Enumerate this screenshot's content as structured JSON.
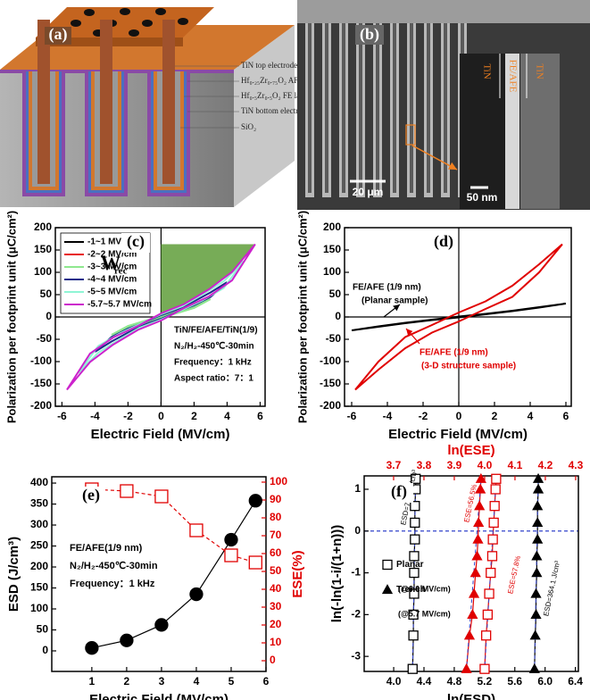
{
  "figure_a": {
    "label": "(a)",
    "layers": [
      "TiN top electrode",
      "Hf₀.₂₅Zr₀.₇₅O₂ AFE layer",
      "Hf₀.₅Zr₀.₅O₂ FE layer",
      "TiN bottom electrode",
      "SiO₂"
    ]
  },
  "figure_b": {
    "label": "(b)",
    "scale_bar": "20 μm",
    "inset_scale_bar": "50 nm",
    "inset_labels": [
      "TiN",
      "FE/AFE",
      "TiN"
    ]
  },
  "chart_data": [
    {
      "type": "line",
      "panel_label": "(c)",
      "xlabel": "Electric Field (MV/cm)",
      "ylabel": "Polarization per footprint unit (μC/cm²)",
      "xlim": [
        -6.4,
        6.3
      ],
      "xticks": [
        -6,
        -4,
        -2,
        0,
        2,
        4,
        6
      ],
      "ylim": [
        -200,
        200
      ],
      "yticks": [
        -200,
        -150,
        -100,
        -50,
        0,
        50,
        100,
        150,
        200
      ],
      "zero_lines": [
        "x",
        "y"
      ],
      "legend": "upper left",
      "area_color": "#5f9e3a",
      "series": [
        {
          "name": "-1~1 MV/cm",
          "color": "#000000",
          "x": [
            1,
            0,
            -1,
            0,
            1
          ],
          "values": [
            12,
            0.5,
            -12,
            -0.5,
            12
          ]
        },
        {
          "name": "-2~2 MV/cm",
          "color": "#e8191b",
          "x": [
            2,
            1,
            0,
            -1,
            -2,
            -1,
            0,
            1,
            2
          ],
          "values": [
            25,
            12,
            1,
            -11,
            -25,
            -12,
            -1,
            11,
            25
          ]
        },
        {
          "name": "-3~3 MV/cm",
          "color": "#8fe88f",
          "x": [
            3,
            2,
            1,
            0,
            -1,
            -2,
            -3,
            -2,
            -1,
            0,
            1,
            2,
            3
          ],
          "values": [
            40,
            24,
            12,
            2,
            -9,
            -20,
            -40,
            -24,
            -12,
            -2,
            9,
            20,
            40
          ]
        },
        {
          "name": "-4~4 MV/cm",
          "color": "#1c2d8a",
          "x": [
            4,
            3,
            2,
            1,
            0,
            -1,
            -2,
            -3,
            -4,
            -3,
            -2,
            -1,
            0,
            1,
            2,
            3,
            4
          ],
          "values": [
            78,
            55,
            35,
            17,
            4,
            -12,
            -26,
            -45,
            -78,
            -55,
            -35,
            -17,
            -4,
            12,
            26,
            45,
            78
          ]
        },
        {
          "name": "-5~5 MV/cm",
          "color": "#8ff5d5",
          "x": [
            5,
            3.8,
            2.5,
            1.3,
            0,
            -1.3,
            -2.5,
            -3.8,
            -5,
            -3.8,
            -2.5,
            -1.3,
            0,
            1.3,
            2.5,
            3.8,
            5
          ],
          "values": [
            125,
            80,
            50,
            24,
            6,
            -16,
            -37,
            -65,
            -125,
            -80,
            -50,
            -24,
            -6,
            16,
            37,
            65,
            125
          ]
        },
        {
          "name": "-5.7~5.7 MV/cm",
          "color": "#cc22cc",
          "x": [
            5.7,
            4.3,
            2.9,
            1.4,
            0,
            -1.4,
            -2.9,
            -4.3,
            -5.7,
            -4.3,
            -2.9,
            -1.4,
            0,
            1.4,
            2.9,
            4.3,
            5.7
          ],
          "values": [
            163,
            101,
            62,
            29,
            8,
            -20,
            -46,
            -82,
            -163,
            -101,
            -62,
            -29,
            -8,
            20,
            46,
            82,
            163
          ]
        }
      ],
      "annotations": [
        {
          "text": "W"
        },
        {
          "text": "rec"
        },
        {
          "text": "TiN/FE/AFE/TiN(1/9)"
        },
        {
          "text": "N₂/H₂-450℃-30min"
        },
        {
          "text": "Frequency：1 kHz"
        },
        {
          "text": "Aspect ratio：7：1"
        }
      ]
    },
    {
      "type": "line",
      "panel_label": "(d)",
      "xlabel": "Electric Field (MV/cm)",
      "ylabel": "Polarization per footprint unit (μC/cm²)",
      "xlim": [
        -6.4,
        6.3
      ],
      "xticks": [
        -6,
        -4,
        -2,
        0,
        2,
        4,
        6
      ],
      "ylim": [
        -200,
        200
      ],
      "yticks": [
        -200,
        -150,
        -100,
        -50,
        0,
        50,
        100,
        150,
        200
      ],
      "zero_lines": [
        "x",
        "y"
      ],
      "series": [
        {
          "color": "#000000",
          "x": [
            6,
            4.5,
            3,
            1.5,
            0,
            -1.5,
            -3,
            -4.5,
            -6,
            -4.5,
            -3,
            -1.5,
            0,
            1.5,
            3,
            4.5,
            6
          ],
          "values": [
            30,
            22,
            14,
            7,
            1,
            -6,
            -13,
            -21,
            -30,
            -22,
            -14,
            -7,
            -1,
            6,
            13,
            21,
            30
          ]
        },
        {
          "color": "#e00000",
          "x": [
            5.8,
            4.5,
            3,
            1.5,
            0,
            -1.5,
            -3,
            -4.5,
            -5.8,
            -4.5,
            -3,
            -1.5,
            0,
            1.5,
            3,
            4.5,
            5.8
          ],
          "values": [
            163,
            118,
            70,
            35,
            10,
            -18,
            -45,
            -100,
            -163,
            -118,
            -70,
            -35,
            -10,
            18,
            45,
            100,
            163
          ]
        }
      ],
      "annotations": [
        {
          "text": "FE/AFE (1/9 nm)",
          "color": "#000000"
        },
        {
          "text": "(Planar sample)",
          "color": "#000000"
        },
        {
          "text": "FE/AFE (1/9 nm)",
          "color": "#e00000"
        },
        {
          "text": "(3-D structure sample)",
          "color": "#e00000"
        }
      ]
    },
    {
      "type": "line",
      "panel_label": "(e)",
      "xlabel": "Electric Field (MV/cm)",
      "ylabel": "ESD (J/cm³)",
      "y2label": "ESE(%)",
      "y2color": "#e00000",
      "x": [
        1,
        2,
        3,
        4,
        5,
        5.7
      ],
      "xlim": [
        -0.15,
        6
      ],
      "xticks": [
        1,
        2,
        3,
        4,
        5,
        6
      ],
      "ylim": [
        -49,
        415
      ],
      "yticks": [
        0,
        50,
        100,
        150,
        200,
        250,
        300,
        350,
        400
      ],
      "y2lim": [
        -6,
        103
      ],
      "y2ticks": [
        0,
        10,
        20,
        30,
        40,
        50,
        60,
        70,
        80,
        90,
        100
      ],
      "series": [
        {
          "color": "#000000",
          "marker": "circle",
          "marker_fill": true,
          "values": [
            7,
            25,
            62,
            135,
            265,
            358
          ]
        },
        {
          "color": "#e00000",
          "marker": "square",
          "marker_fill": false,
          "dashed": true,
          "axis": "y2",
          "values": [
            96,
            95,
            92,
            73,
            59,
            55
          ]
        }
      ],
      "annotations": [
        {
          "text": "FE/AFE(1/9 nm)"
        },
        {
          "text": "N₂/H₂-450℃-30min"
        },
        {
          "text": "Frequency：1 kHz"
        }
      ]
    },
    {
      "type": "scatter",
      "panel_label": "(f)",
      "xlabel": "ln(ESD)",
      "x2label": "ln(ESE)",
      "x2color": "#e00000",
      "ylabel": "ln(-ln(1-i/(1+n)))",
      "xlim": [
        3.61,
        6.44
      ],
      "xticks": [
        {
          "value": 4,
          "label": "4.0"
        },
        4.4,
        4.8,
        5.2,
        5.6,
        {
          "value": 6,
          "label": "6.0"
        },
        6.4
      ],
      "x2lim": [
        3.603,
        4.309
      ],
      "x2ticks": [
        3.7,
        3.8,
        3.9,
        {
          "value": 4,
          "label": "4.0"
        },
        4.1,
        4.2,
        4.3
      ],
      "ylim": [
        -3.36,
        1.32
      ],
      "yticks": [
        -3,
        -2,
        -1,
        0,
        1
      ],
      "zero_lines": [
        "y"
      ],
      "legend": "center left",
      "fit_color": "#3344cc",
      "series": [
        {
          "name": "Planar",
          "color": "#000000",
          "marker": "square",
          "marker_fill": false,
          "connect": true,
          "x": [
            4.25,
            4.26,
            4.26,
            4.27,
            4.27,
            4.27,
            4.28,
            4.28,
            4.28,
            4.29,
            4.29
          ],
          "values": [
            -3.3,
            -2.5,
            -2.0,
            -1.5,
            -1.0,
            -0.6,
            -0.2,
            0.2,
            0.6,
            1.0,
            1.25
          ]
        },
        {
          "name": "Trench",
          "color": "#000000",
          "marker": "triangle",
          "marker_fill": true,
          "connect": true,
          "x": [
            5.86,
            5.87,
            5.88,
            5.88,
            5.89,
            5.89,
            5.9,
            5.9,
            5.9,
            5.91,
            5.91
          ],
          "values": [
            -3.3,
            -2.5,
            -2.0,
            -1.5,
            -1.0,
            -0.6,
            -0.2,
            0.2,
            0.6,
            1.0,
            1.25
          ]
        },
        {
          "color": "#e00000",
          "marker": "square",
          "marker_fill": false,
          "connect": true,
          "axis": "x2",
          "x": [
            4.0,
            4.005,
            4.01,
            4.015,
            4.02,
            4.025,
            4.027,
            4.03,
            4.033,
            4.036,
            4.038
          ],
          "values": [
            -3.3,
            -2.5,
            -2.0,
            -1.5,
            -1.0,
            -0.6,
            -0.2,
            0.2,
            0.6,
            1.0,
            1.25
          ]
        },
        {
          "color": "#e00000",
          "marker": "triangle",
          "marker_fill": true,
          "connect": true,
          "axis": "x2",
          "x": [
            3.94,
            3.95,
            3.96,
            3.965,
            3.97,
            3.975,
            3.978,
            3.98,
            3.983,
            3.986,
            3.988
          ],
          "values": [
            -3.3,
            -2.5,
            -2.0,
            -1.5,
            -1.0,
            -0.6,
            -0.2,
            0.2,
            0.6,
            1.0,
            1.25
          ]
        }
      ],
      "annotations": [
        {
          "text": "ESD=71.95 J/cm³",
          "color": "#000000"
        },
        {
          "text": "ESE=56.5%",
          "color": "#e00000"
        },
        {
          "text": "ESE=57.8%",
          "color": "#e00000"
        },
        {
          "text": "ESD=364.1 J/cm³",
          "color": "#000000"
        },
        {
          "text": "(@6.0 MV/cm)",
          "color": "#000000"
        },
        {
          "text": "(@5.7 MV/cm)",
          "color": "#000000"
        }
      ]
    }
  ]
}
